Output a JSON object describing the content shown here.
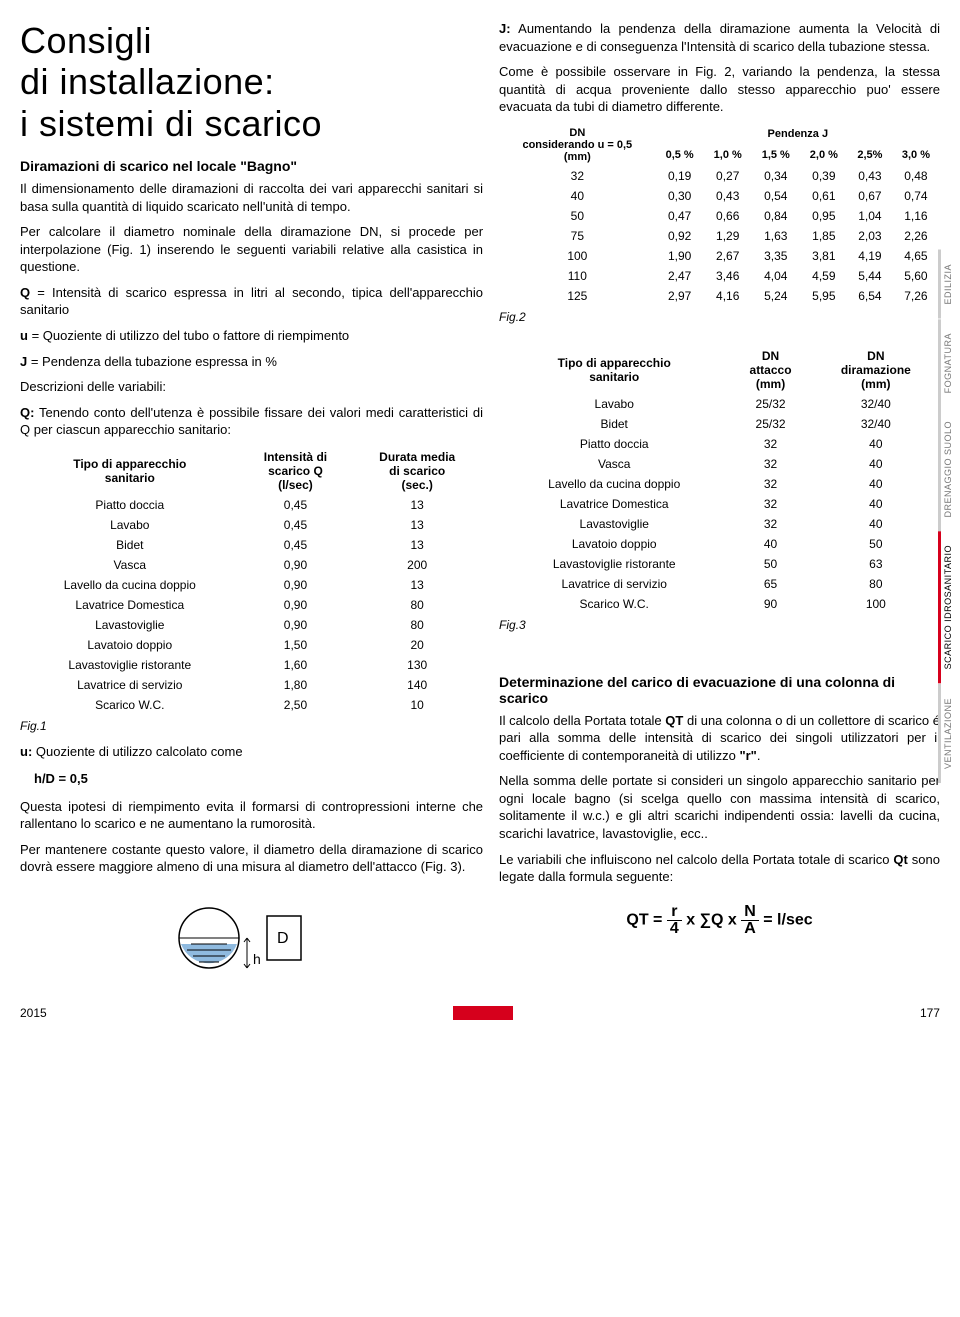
{
  "title": "Consigli\ndi installazione:\ni sistemi di scarico",
  "left": {
    "h1": "Diramazioni di scarico nel locale \"Bagno\"",
    "p1": "Il dimensionamento delle diramazioni di raccolta dei vari apparecchi sanitari si basa sulla quantità di liquido scaricato nell'unità di tempo.",
    "p2": "Per calcolare il diametro nominale della diramazione DN, si procede per interpolazione (Fig. 1) inserendo le seguenti variabili relative alla casistica in questione.",
    "q_def": "Q = Intensità di scarico espressa in litri al secondo, tipica dell'apparecchio sanitario",
    "u_def": "u = Quoziente di utilizzo del tubo o fattore di riempimento",
    "j_def": "J = Pendenza della tubazione espressa in %",
    "p3": "Descrizioni delle variabili:",
    "p4_a": "Q:",
    "p4_b": " Tenendo conto dell'utenza è possibile fissare dei valori medi caratteristici di Q per ciascun apparecchio sanitario:",
    "tbl1": {
      "headers": [
        "Tipo di apparecchio sanitario",
        "Intensità di scarico Q (l/sec)",
        "Durata media di scarico (sec.)"
      ],
      "rows": [
        [
          "Piatto doccia",
          "0,45",
          "13"
        ],
        [
          "Lavabo",
          "0,45",
          "13"
        ],
        [
          "Bidet",
          "0,45",
          "13"
        ],
        [
          "Vasca",
          "0,90",
          "200"
        ],
        [
          "Lavello da cucina doppio",
          "0,90",
          "13"
        ],
        [
          "Lavatrice Domestica",
          "0,90",
          "80"
        ],
        [
          "Lavastoviglie",
          "0,90",
          "80"
        ],
        [
          "Lavatoio doppio",
          "1,50",
          "20"
        ],
        [
          "Lavastoviglie ristorante",
          "1,60",
          "130"
        ],
        [
          "Lavatrice di servizio",
          "1,80",
          "140"
        ],
        [
          "Scarico W.C.",
          "2,50",
          "10"
        ]
      ]
    },
    "fig1": "Fig.1",
    "p5_a": "u:",
    "p5_b": " Quoziente di utilizzo calcolato come",
    "hd": "h/D = 0,5",
    "p6": "Questa ipotesi di riempimento evita il formarsi di contropressioni interne che rallentano lo scarico e ne aumentano la rumorosità.",
    "p7": "Per mantenere costante questo valore, il diametro della diramazione di scarico dovrà essere maggiore almeno di una misura al diametro dell'attacco (Fig. 3).",
    "diagram": {
      "h": "h",
      "D": "D"
    }
  },
  "right": {
    "p1_a": "J:",
    "p1_b": " Aumentando la pendenza della diramazione aumenta la Velocità di evacuazione e di conseguenza l'Intensità di scarico della tubazione stessa.",
    "p2": "Come è possibile osservare in Fig. 2, variando la pendenza, la stessa quantità di acqua proveniente dallo stesso apparecchio puo' essere evacuata da tubi di diametro differente.",
    "tbl2": {
      "head_left": "DN considerando u = 0,5 (mm)",
      "head_right": "Pendenza J",
      "cols": [
        "0,5 %",
        "1,0 %",
        "1,5 %",
        "2,0 %",
        "2,5%",
        "3,0 %"
      ],
      "rows": [
        [
          "32",
          "0,19",
          "0,27",
          "0,34",
          "0,39",
          "0,43",
          "0,48"
        ],
        [
          "40",
          "0,30",
          "0,43",
          "0,54",
          "0,61",
          "0,67",
          "0,74"
        ],
        [
          "50",
          "0,47",
          "0,66",
          "0,84",
          "0,95",
          "1,04",
          "1,16"
        ],
        [
          "75",
          "0,92",
          "1,29",
          "1,63",
          "1,85",
          "2,03",
          "2,26"
        ],
        [
          "100",
          "1,90",
          "2,67",
          "3,35",
          "3,81",
          "4,19",
          "4,65"
        ],
        [
          "110",
          "2,47",
          "3,46",
          "4,04",
          "4,59",
          "5,44",
          "5,60"
        ],
        [
          "125",
          "2,97",
          "4,16",
          "5,24",
          "5,95",
          "6,54",
          "7,26"
        ]
      ]
    },
    "fig2": "Fig.2",
    "tbl3": {
      "headers": [
        "Tipo di apparecchio sanitario",
        "DN attacco (mm)",
        "DN diramazione (mm)"
      ],
      "rows": [
        [
          "Lavabo",
          "25/32",
          "32/40"
        ],
        [
          "Bidet",
          "25/32",
          "32/40"
        ],
        [
          "Piatto doccia",
          "32",
          "40"
        ],
        [
          "Vasca",
          "32",
          "40"
        ],
        [
          "Lavello da cucina doppio",
          "32",
          "40"
        ],
        [
          "Lavatrice Domestica",
          "32",
          "40"
        ],
        [
          "Lavastoviglie",
          "32",
          "40"
        ],
        [
          "Lavatoio doppio",
          "40",
          "50"
        ],
        [
          "Lavastoviglie ristorante",
          "50",
          "63"
        ],
        [
          "Lavatrice di servizio",
          "65",
          "80"
        ],
        [
          "Scarico W.C.",
          "90",
          "100"
        ]
      ]
    },
    "fig3": "Fig.3",
    "h2": "Determinazione del carico di evacuazione di una colonna di scarico",
    "p3": "Il calcolo della Portata totale QT di una colonna o di un collettore di scarico é pari alla somma delle intensità di scarico dei singoli utilizzatori per il coefficiente di contemporaneità di utilizzo \"r\".",
    "p4": "Nella somma delle portate si consideri un singolo apparecchio sanitario per ogni locale bagno (si scelga quello con massima intensità di scarico, solitamente il w.c.) e gli altri scarichi indipendenti ossia: lavelli da cucina, scarichi lavatrice, lavastoviglie, ecc..",
    "p5": "Le variabili che influiscono nel calcolo della Portata totale di scarico Qt sono legate dalla formula seguente:",
    "formula": {
      "qt": "QT =",
      "r": "r",
      "four": "4",
      "x": "x",
      "sigma": "∑Q",
      "N": "N",
      "A": "A",
      "eq": "= l/sec"
    }
  },
  "tabs": [
    "EDILIZIA",
    "FOGNATURA",
    "DRENAGGIO SUOLO",
    "SCARICO IDROSANITARIO",
    "VENTILAZIONE"
  ],
  "footer": {
    "year": "2015",
    "page": "177"
  }
}
